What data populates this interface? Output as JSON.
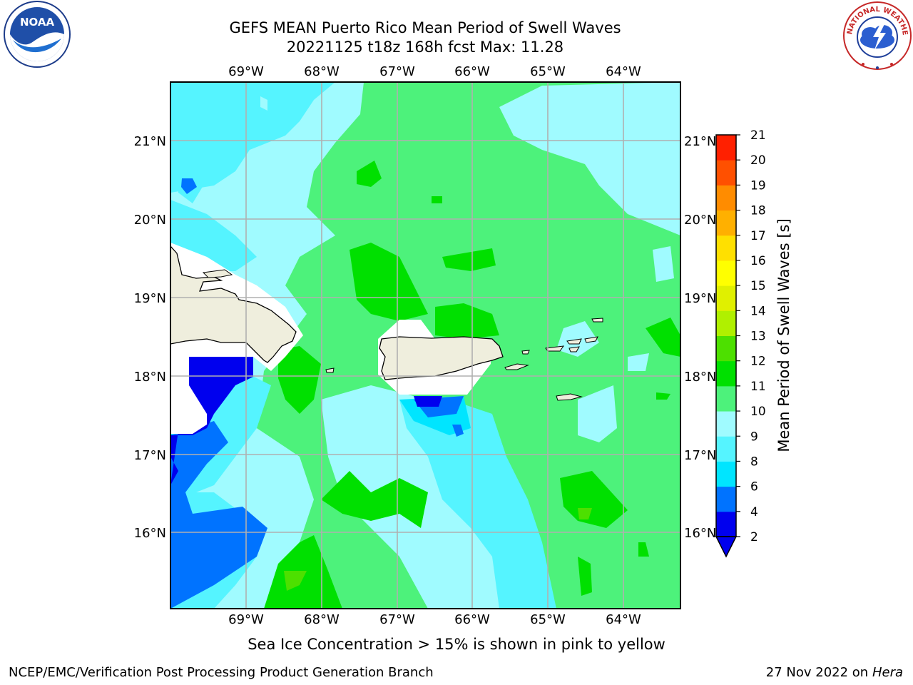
{
  "title": {
    "line1": "GEFS MEAN Puerto Rico Mean Period of Swell Waves",
    "line2": "20221125 t18z 168h fcst   Max: 11.28"
  },
  "axes": {
    "lon_labels": [
      "69°W",
      "68°W",
      "67°W",
      "66°W",
      "65°W",
      "64°W"
    ],
    "lat_labels": [
      "21°N",
      "20°N",
      "19°N",
      "18°N",
      "17°N",
      "16°N"
    ],
    "lon_range": [
      -70.0,
      -63.25
    ],
    "lat_range": [
      15.0,
      21.75
    ]
  },
  "colorbar": {
    "label": "Mean Period of Swell Waves [s]",
    "ticks": [
      "2",
      "4",
      "6",
      "8",
      "9",
      "10",
      "11",
      "12",
      "13",
      "14",
      "15",
      "16",
      "17",
      "18",
      "19",
      "20",
      "21"
    ],
    "colors": [
      "#0000ee",
      "#0073ff",
      "#00e5ff",
      "#55f4ff",
      "#a0fbff",
      "#4df27b",
      "#00e000",
      "#4de000",
      "#b0f000",
      "#e0f000",
      "#ffff00",
      "#ffe000",
      "#ffb000",
      "#ff8c00",
      "#ff5000",
      "#ff2000"
    ],
    "extend_below_color": "#0000ee"
  },
  "note": "Sea Ice Concentration > 15% is shown in pink to yellow",
  "footer": {
    "left": "NCEP/EMC/Verification Post Processing Product Generation Branch",
    "right_date": "27 Nov 2022 on",
    "right_host": "Hera"
  },
  "logos": {
    "noaa_text": "NOAA",
    "nws_text": "NATIONAL WEATHER SERVICE"
  },
  "colors": {
    "land": "#efeedd",
    "grid": "#b0b0b0"
  }
}
